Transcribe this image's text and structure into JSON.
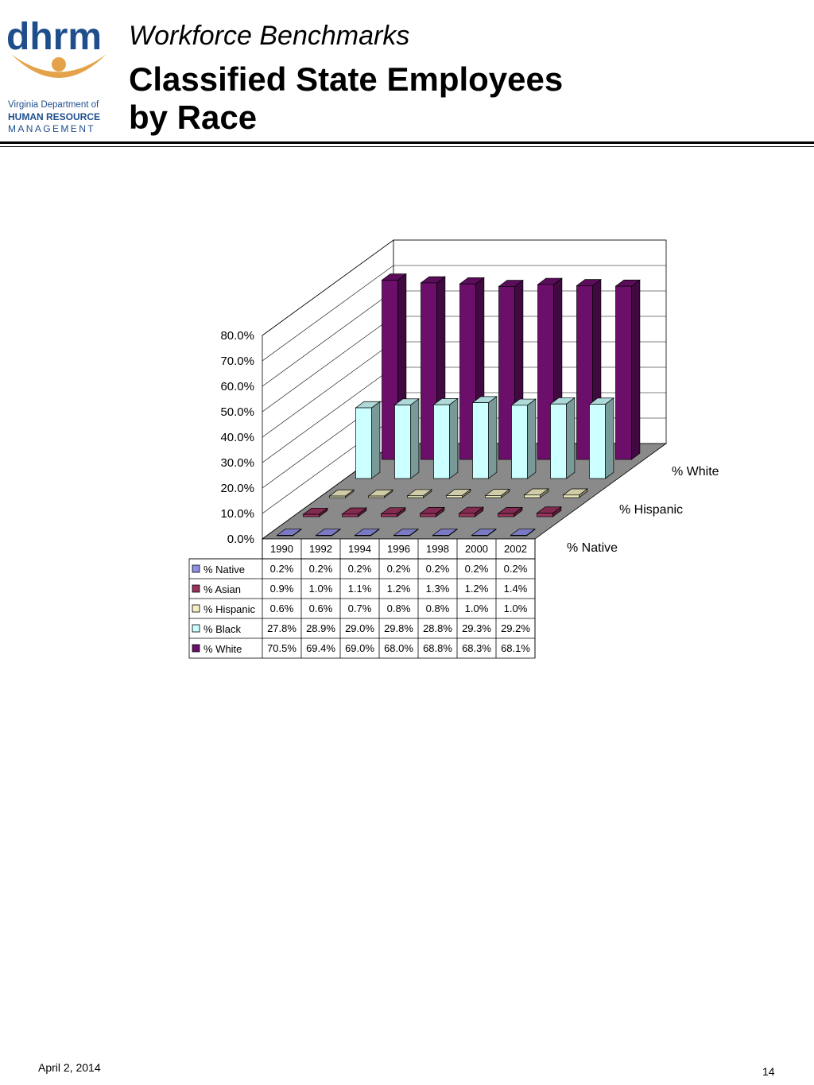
{
  "header": {
    "subtitle": "Workforce Benchmarks",
    "title": "Classified State Employees\nby Race"
  },
  "logo": {
    "wordmark": "dhrm",
    "line1": "Virginia Department of",
    "line2": "HUMAN RESOURCE",
    "line3": "MANAGEMENT",
    "colors": {
      "blue": "#1f4e8c",
      "orange": "#e4a24a"
    }
  },
  "footer": {
    "date": "April 2, 2014",
    "page": "14"
  },
  "chart_data": {
    "type": "bar",
    "variant": "3d-column-with-data-table",
    "categories": [
      "1990",
      "1992",
      "1994",
      "1996",
      "1998",
      "2000",
      "2002"
    ],
    "y_ticks": [
      "0.0%",
      "10.0%",
      "20.0%",
      "30.0%",
      "40.0%",
      "50.0%",
      "60.0%",
      "70.0%",
      "80.0%"
    ],
    "ylim": [
      0,
      80
    ],
    "grid": true,
    "depth_axis_labels": [
      "% Native",
      "% Hispanic",
      "% White"
    ],
    "series": [
      {
        "name": "% Native",
        "color": "#8f8fe6",
        "values": [
          0.2,
          0.2,
          0.2,
          0.2,
          0.2,
          0.2,
          0.2
        ],
        "labels": [
          "0.2%",
          "0.2%",
          "0.2%",
          "0.2%",
          "0.2%",
          "0.2%",
          "0.2%"
        ]
      },
      {
        "name": "% Asian",
        "color": "#99335e",
        "values": [
          0.9,
          1.0,
          1.1,
          1.2,
          1.3,
          1.2,
          1.4
        ],
        "labels": [
          "0.9%",
          "1.0%",
          "1.1%",
          "1.2%",
          "1.3%",
          "1.2%",
          "1.4%"
        ]
      },
      {
        "name": "% Hispanic",
        "color": "#f3f0c4",
        "values": [
          0.6,
          0.6,
          0.7,
          0.8,
          0.8,
          1.0,
          1.0
        ],
        "labels": [
          "0.6%",
          "0.6%",
          "0.7%",
          "0.8%",
          "0.8%",
          "1.0%",
          "1.0%"
        ]
      },
      {
        "name": "% Black",
        "color": "#ccffff",
        "values": [
          27.8,
          28.9,
          29.0,
          29.8,
          28.8,
          29.3,
          29.2
        ],
        "labels": [
          "27.8%",
          "28.9%",
          "29.0%",
          "29.8%",
          "28.8%",
          "29.3%",
          "29.2%"
        ]
      },
      {
        "name": "% White",
        "color": "#6b0f6b",
        "values": [
          70.5,
          69.4,
          69.0,
          68.0,
          68.8,
          68.3,
          68.1
        ],
        "labels": [
          "70.5%",
          "69.4%",
          "69.0%",
          "68.0%",
          "68.8%",
          "68.3%",
          "68.1%"
        ]
      }
    ]
  }
}
